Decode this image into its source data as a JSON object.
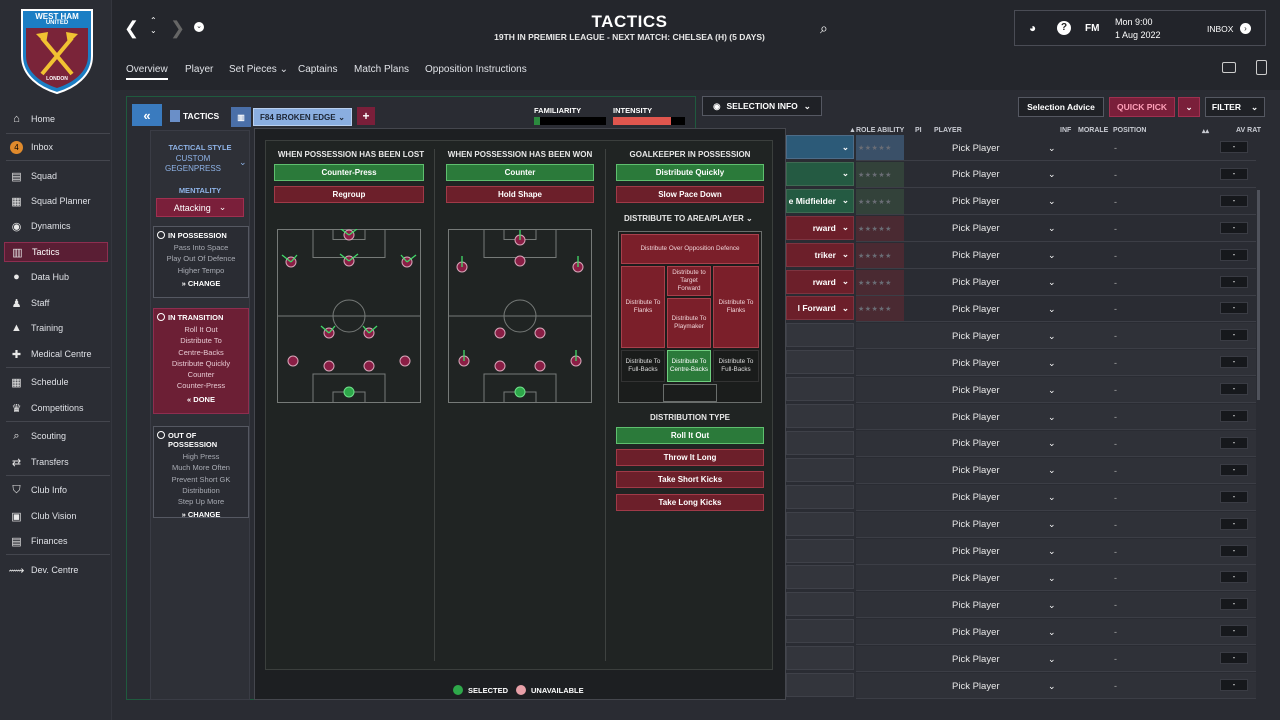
{
  "club": {
    "badge_text_top": "WEST HAM",
    "badge_text_mid": "UNITED",
    "badge_text_bottom": "LONDON"
  },
  "sidebar": {
    "items": [
      {
        "label": "Home",
        "icon": "home-icon"
      },
      {
        "label": "Inbox",
        "icon": "inbox-icon",
        "badge": "4"
      },
      {
        "label": "Squad",
        "icon": "shirt-icon"
      },
      {
        "label": "Squad Planner",
        "icon": "planner-icon"
      },
      {
        "label": "Dynamics",
        "icon": "dynamics-icon"
      },
      {
        "label": "Tactics",
        "icon": "tactics-icon",
        "active": true
      },
      {
        "label": "Data Hub",
        "icon": "data-hub-icon"
      },
      {
        "label": "Staff",
        "icon": "staff-icon"
      },
      {
        "label": "Training",
        "icon": "training-icon"
      },
      {
        "label": "Medical Centre",
        "icon": "medical-icon"
      },
      {
        "label": "Schedule",
        "icon": "calendar-icon"
      },
      {
        "label": "Competitions",
        "icon": "trophy-icon"
      },
      {
        "label": "Scouting",
        "icon": "scouting-icon"
      },
      {
        "label": "Transfers",
        "icon": "transfers-icon"
      },
      {
        "label": "Club Info",
        "icon": "shield-icon"
      },
      {
        "label": "Club Vision",
        "icon": "vision-icon"
      },
      {
        "label": "Finances",
        "icon": "finances-icon"
      },
      {
        "label": "Dev. Centre",
        "icon": "dev-centre-icon"
      }
    ]
  },
  "header": {
    "title": "TACTICS",
    "subtitle": "19TH IN PREMIER LEAGUE - NEXT MATCH: CHELSEA (H) (5 DAYS)",
    "date_day": "Mon 9:00",
    "date": "1 Aug 2022",
    "inbox_label": "INBOX",
    "fm_label": "FM",
    "help_label": "?",
    "tabs": [
      "Overview",
      "Player",
      "Set Pieces",
      "Captains",
      "Match Plans",
      "Opposition Instructions"
    ]
  },
  "tactic_bar": {
    "tactics_label": "TACTICS",
    "formation": "F84 BROKEN EDGE",
    "add_label": "+",
    "familiarity_label": "FAMILIARITY",
    "intensity_label": "INTENSITY",
    "familiarity_level": 0.08,
    "intensity_level": 0.8
  },
  "left_panel": {
    "tactical_style_label": "TACTICAL STYLE",
    "style_line1": "CUSTOM",
    "style_line2": "GEGENPRESS",
    "mentality_label": "MENTALITY",
    "mentality": "Attacking",
    "in_possession": {
      "title": "IN POSSESSION",
      "lines": [
        "Pass Into Space",
        "Play Out Of Defence",
        "Higher Tempo"
      ],
      "button": "CHANGE"
    },
    "in_transition": {
      "title": "IN TRANSITION",
      "lines": [
        "Roll It Out",
        "Distribute To",
        "Centre-Backs",
        "Distribute Quickly",
        "Counter",
        "Counter-Press"
      ],
      "button": "DONE"
    },
    "out_of_possession": {
      "title": "OUT OF POSSESSION",
      "lines": [
        "High Press",
        "Much More Often",
        "Prevent Short GK",
        "Distribution",
        "Step Up More"
      ],
      "button": "CHANGE"
    }
  },
  "popup": {
    "col1": {
      "title": "WHEN POSSESSION HAS BEEN LOST",
      "options": [
        {
          "label": "Counter-Press",
          "state": "selected"
        },
        {
          "label": "Regroup",
          "state": "unselected"
        }
      ]
    },
    "col2": {
      "title": "WHEN POSSESSION HAS BEEN WON",
      "options": [
        {
          "label": "Counter",
          "state": "selected"
        },
        {
          "label": "Hold Shape",
          "state": "unselected"
        }
      ]
    },
    "col3": {
      "title": "GOALKEEPER IN POSSESSION",
      "options": [
        {
          "label": "Distribute Quickly",
          "state": "selected"
        },
        {
          "label": "Slow Pace Down",
          "state": "unselected"
        }
      ],
      "distribute_label": "DISTRIBUTE TO AREA/PLAYER",
      "zones": {
        "opposition": "Distribute Over Opposition Defence",
        "flanks": "Distribute To Flanks",
        "target": "Distribute to Target Forward",
        "playmaker": "Distribute To Playmaker",
        "fullbacks": "Distribute To Full-Backs",
        "centrebacks": "Distribute To Centre-Backs"
      },
      "distribution_type_label": "DISTRIBUTION TYPE",
      "types": [
        {
          "label": "Roll It Out",
          "state": "selected"
        },
        {
          "label": "Throw It Long",
          "state": "unselected"
        },
        {
          "label": "Take Short Kicks",
          "state": "unselected"
        },
        {
          "label": "Take Long Kicks",
          "state": "unselected"
        }
      ]
    },
    "legend": {
      "selected": "SELECTED",
      "unavailable": "UNAVAILABLE"
    },
    "colors": {
      "selected": "#2b7a3a",
      "unavailable": "#e8a0a8",
      "player": "#8a1e45"
    }
  },
  "right": {
    "selection_info": "SELECTION INFO",
    "selection_advice": "Selection Advice",
    "quick_pick": "QUICK PICK",
    "filter": "FILTER",
    "columns": {
      "role_ability": "ROLE ABILITY",
      "pi": "PI",
      "player": "PLAYER",
      "inf": "INF",
      "morale": "MORALE",
      "position": "POSITION",
      "av_rat": "AV RAT"
    },
    "role_labels": [
      "",
      "",
      "e Midfielder",
      "rward",
      "triker",
      "rward",
      "l Forward"
    ],
    "rows_count": 21,
    "pick_label": "Pick Player",
    "dash": "-",
    "stars": "★★★★★"
  }
}
